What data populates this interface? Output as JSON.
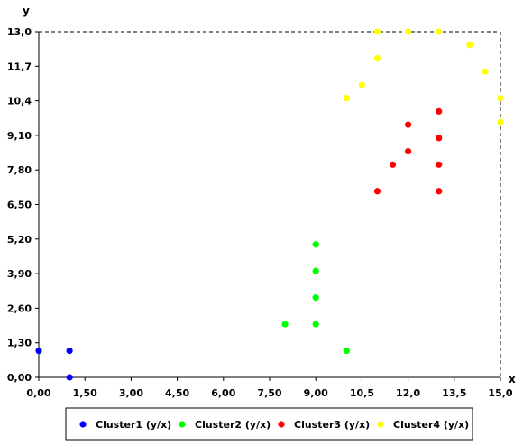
{
  "chart_data": {
    "type": "scatter",
    "title": "",
    "xlabel": "x",
    "ylabel": "y",
    "xlim": [
      0,
      15
    ],
    "ylim": [
      0,
      13
    ],
    "x_ticks": [
      "0,00",
      "1,50",
      "3,00",
      "4,50",
      "6,00",
      "7,50",
      "9,00",
      "10,5",
      "12,0",
      "13,5",
      "15,0"
    ],
    "y_ticks": [
      "0,00",
      "1,30",
      "2,60",
      "3,90",
      "5,20",
      "6,50",
      "7,80",
      "9,10",
      "10,4",
      "11,7",
      "13,0"
    ],
    "grid": false,
    "legend_position": "bottom",
    "series": [
      {
        "name": "Cluster1 (y/x)",
        "color": "#0000ff",
        "points": [
          [
            0,
            1
          ],
          [
            1,
            1
          ],
          [
            1,
            0
          ]
        ]
      },
      {
        "name": "Cluster2 (y/x)",
        "color": "#00ff00",
        "points": [
          [
            8,
            2
          ],
          [
            9,
            2
          ],
          [
            9,
            3
          ],
          [
            9,
            4
          ],
          [
            9,
            5
          ],
          [
            10,
            1
          ]
        ]
      },
      {
        "name": "Cluster3 (y/x)",
        "color": "#ff0000",
        "points": [
          [
            11,
            7
          ],
          [
            11.5,
            8
          ],
          [
            12,
            8.5
          ],
          [
            12,
            9.5
          ],
          [
            13,
            7
          ],
          [
            13,
            8
          ],
          [
            13,
            9
          ],
          [
            13,
            10
          ]
        ]
      },
      {
        "name": "Cluster4 (y/x)",
        "color": "#ffff00",
        "points": [
          [
            10,
            10.5
          ],
          [
            10.5,
            11
          ],
          [
            11,
            12
          ],
          [
            11,
            13
          ],
          [
            12,
            13
          ],
          [
            13,
            13
          ],
          [
            14,
            12.5
          ],
          [
            14.5,
            11.5
          ],
          [
            15,
            10.5
          ],
          [
            15,
            9.6
          ]
        ]
      }
    ]
  }
}
